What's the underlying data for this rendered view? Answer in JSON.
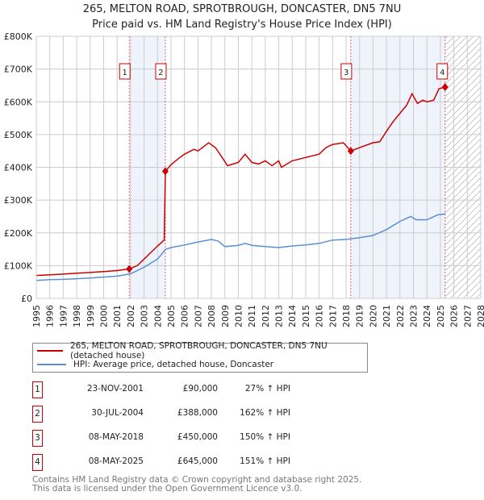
{
  "chart_data": {
    "type": "line",
    "title": "265, MELTON ROAD, SPROTBROUGH, DONCASTER, DN5 7NU",
    "subtitle": "Price paid vs. HM Land Registry's House Price Index (HPI)",
    "xlim": [
      1995,
      2028
    ],
    "ylim": [
      0,
      800000
    ],
    "x_ticks": [
      "1995",
      "1996",
      "1997",
      "1998",
      "1999",
      "2000",
      "2001",
      "2002",
      "2003",
      "2004",
      "2005",
      "2006",
      "2007",
      "2008",
      "2009",
      "2010",
      "2011",
      "2012",
      "2013",
      "2014",
      "2015",
      "2016",
      "2017",
      "2018",
      "2019",
      "2020",
      "2021",
      "2022",
      "2023",
      "2024",
      "2025",
      "2026",
      "2027",
      "2028"
    ],
    "y_ticks": [
      {
        "v": 0,
        "label": "£0"
      },
      {
        "v": 100000,
        "label": "£100K"
      },
      {
        "v": 200000,
        "label": "£200K"
      },
      {
        "v": 300000,
        "label": "£300K"
      },
      {
        "v": 400000,
        "label": "£400K"
      },
      {
        "v": 500000,
        "label": "£500K"
      },
      {
        "v": 600000,
        "label": "£600K"
      },
      {
        "v": 700000,
        "label": "£700K"
      },
      {
        "v": 800000,
        "label": "£800K"
      }
    ],
    "grid": true,
    "series": [
      {
        "name": "265, MELTON ROAD, SPROTBROUGH, DONCASTER, DN5 7NU (detached house)",
        "color": "#cc0000",
        "x": [
          1995,
          1996,
          1997,
          1998,
          1999,
          2000,
          2001,
          2001.9,
          2002.5,
          2003,
          2003.5,
          2004,
          2004.5,
          2004.58,
          2005,
          2005.5,
          2006,
          2006.7,
          2007,
          2007.8,
          2008.3,
          2008.8,
          2009.2,
          2010,
          2010.5,
          2011,
          2011.5,
          2012,
          2012.5,
          2013,
          2013.2,
          2014,
          2015,
          2016,
          2016.5,
          2017,
          2017.8,
          2018.35,
          2019,
          2020,
          2020.5,
          2021,
          2021.5,
          2022,
          2022.5,
          2022.9,
          2023.3,
          2023.7,
          2024,
          2024.5,
          2024.9,
          2025.35
        ],
        "y": [
          70000,
          72000,
          74000,
          77000,
          79000,
          82000,
          85000,
          90000,
          100000,
          120000,
          140000,
          160000,
          178000,
          388000,
          408000,
          425000,
          440000,
          455000,
          450000,
          475000,
          460000,
          430000,
          405000,
          415000,
          440000,
          415000,
          410000,
          420000,
          405000,
          420000,
          400000,
          420000,
          430000,
          440000,
          460000,
          470000,
          475000,
          450000,
          460000,
          475000,
          478000,
          510000,
          540000,
          565000,
          590000,
          625000,
          595000,
          605000,
          600000,
          605000,
          640000,
          645000
        ]
      },
      {
        "name": "HPI: Average price, detached house, Doncaster",
        "color": "#5b8fd4",
        "x": [
          1995,
          1996,
          1997,
          1998,
          1999,
          2000,
          2001,
          2002,
          2003,
          2004,
          2004.6,
          2005,
          2006,
          2007,
          2008,
          2008.5,
          2009,
          2010,
          2010.5,
          2011,
          2012,
          2013,
          2014,
          2015,
          2016,
          2017,
          2018,
          2019,
          2020,
          2021,
          2022,
          2022.8,
          2023.2,
          2024,
          2024.8,
          2025.4
        ],
        "y": [
          55000,
          57000,
          58000,
          60000,
          62000,
          65000,
          68000,
          75000,
          95000,
          120000,
          150000,
          155000,
          163000,
          172000,
          180000,
          175000,
          158000,
          162000,
          168000,
          162000,
          158000,
          155000,
          160000,
          163000,
          168000,
          178000,
          180000,
          185000,
          192000,
          210000,
          235000,
          250000,
          240000,
          240000,
          255000,
          258000
        ]
      }
    ],
    "sales": [
      {
        "n": "1",
        "x": 2001.9,
        "y": 90000,
        "date": "23-NOV-2001",
        "price": "£90,000",
        "hpi": "27% ↑ HPI"
      },
      {
        "n": "2",
        "x": 2004.58,
        "y": 388000,
        "date": "30-JUL-2004",
        "price": "£388,000",
        "hpi": "162% ↑ HPI"
      },
      {
        "n": "3",
        "x": 2018.35,
        "y": 450000,
        "date": "08-MAY-2018",
        "price": "£450,000",
        "hpi": "150% ↑ HPI"
      },
      {
        "n": "4",
        "x": 2025.35,
        "y": 645000,
        "date": "08-MAY-2025",
        "price": "£645,000",
        "hpi": "151% ↑ HPI"
      }
    ],
    "shaded_ranges": [
      [
        2001.9,
        2004.58
      ],
      [
        2018.35,
        2025.35
      ]
    ],
    "forecast_hatch_from": 2025.35,
    "legend_placement": "below"
  },
  "footer": {
    "line1": "Contains HM Land Registry data © Crown copyright and database right 2025.",
    "line2": "This data is licensed under the Open Government Licence v3.0."
  }
}
